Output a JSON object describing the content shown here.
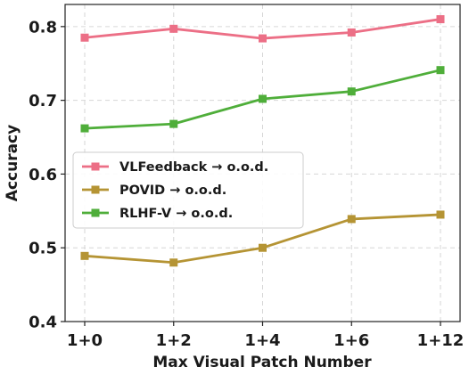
{
  "chart_data": {
    "type": "line",
    "x": [
      "1+0",
      "1+2",
      "1+4",
      "1+6",
      "1+12"
    ],
    "xlabel": "Max Visual Patch Number",
    "ylabel": "Accuracy",
    "ylim": [
      0.4,
      0.83
    ],
    "yticks": [
      0.4,
      0.5,
      0.6,
      0.7,
      0.8
    ],
    "ytick_labels": [
      "0.4",
      "0.5",
      "0.6",
      "0.7",
      "0.8"
    ],
    "grid": true,
    "legend_position": "center-left",
    "series": [
      {
        "name": "VLFeedback → o.o.d.",
        "color": "#ec6f86",
        "marker": "square",
        "values": [
          0.785,
          0.797,
          0.784,
          0.792,
          0.81
        ]
      },
      {
        "name": "POVID → o.o.d.",
        "color": "#b59434",
        "marker": "square",
        "values": [
          0.489,
          0.48,
          0.5,
          0.539,
          0.545
        ]
      },
      {
        "name": "RLHF-V → o.o.d.",
        "color": "#4fae3a",
        "marker": "square",
        "values": [
          0.662,
          0.668,
          0.702,
          0.712,
          0.741
        ]
      }
    ]
  }
}
